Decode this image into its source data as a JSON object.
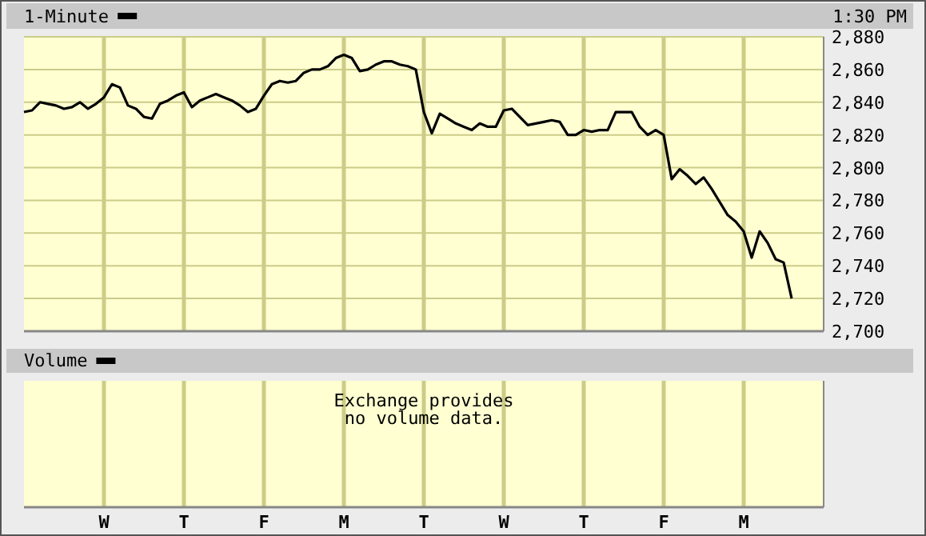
{
  "chart_data": [
    {
      "type": "line",
      "title": "1-Minute",
      "subtitle": "1:30 PM",
      "grid": true,
      "tick_labels": "y",
      "categories": [
        null,
        null,
        null,
        null,
        null,
        null,
        null,
        null,
        null,
        null,
        null,
        null,
        null,
        null,
        null,
        null,
        null,
        null,
        null,
        null,
        null,
        null,
        null,
        null,
        null,
        null,
        null,
        null,
        null,
        null,
        null,
        null,
        null,
        null,
        null,
        null,
        null,
        null,
        null,
        null,
        null,
        null,
        null,
        null,
        null,
        null,
        null,
        null,
        null,
        null,
        null,
        null,
        null,
        null,
        null,
        null,
        null,
        null,
        null,
        null,
        null,
        null,
        null,
        null,
        null,
        null,
        null,
        null,
        null,
        null,
        null,
        null,
        null,
        null,
        null,
        null,
        null,
        null,
        null,
        null,
        null,
        null,
        null,
        null,
        null,
        null,
        null,
        null,
        null,
        null,
        null,
        null,
        null,
        null,
        null,
        null,
        null,
        null,
        null,
        null
      ],
      "ylim": [
        2700,
        2880
      ],
      "yticks": [
        {
          "value": 2700,
          "label": "2,700"
        },
        {
          "value": 2720,
          "label": "2,720"
        },
        {
          "value": 2740,
          "label": "2,740"
        },
        {
          "value": 2760,
          "label": "2,760"
        },
        {
          "value": 2780,
          "label": "2,780"
        },
        {
          "value": 2800,
          "label": "2,800"
        },
        {
          "value": 2820,
          "label": "2,820"
        },
        {
          "value": 2840,
          "label": "2,840"
        },
        {
          "value": 2860,
          "label": "2,860"
        },
        {
          "value": 2880,
          "label": "2,880"
        }
      ],
      "series": [
        {
          "color": "#000000",
          "values": [
            2834,
            2835,
            2840,
            2839,
            2838,
            2836,
            2837,
            2840,
            2836,
            2839,
            2843,
            2851,
            2849,
            2838,
            2836,
            2831,
            2830,
            2839,
            2841,
            2844,
            2846,
            2837,
            2841,
            2843,
            2845,
            2843,
            2841,
            2838,
            2834,
            2836,
            2844,
            2851,
            2853,
            2852,
            2853,
            2858,
            2860,
            2860,
            2862,
            2867,
            2869,
            2867,
            2859,
            2860,
            2863,
            2865,
            2865,
            2863,
            2862,
            2860,
            2834,
            2821,
            2833,
            2830,
            2827,
            2825,
            2823,
            2827,
            2825,
            2825,
            2835,
            2836,
            2831,
            2826,
            2827,
            2828,
            2829,
            2828,
            2820,
            2820,
            2823,
            2822,
            2823,
            2823,
            2834,
            2834,
            2834,
            2825,
            2820,
            2823,
            2820,
            2793,
            2799,
            2795,
            2790,
            2794,
            2787,
            2779,
            2771,
            2767,
            2761,
            2745,
            2761,
            2754,
            2744,
            2742,
            2720,
            null,
            null,
            null
          ]
        }
      ]
    },
    {
      "type": "other",
      "title": "Volume",
      "categories": [
        null,
        null,
        null,
        null,
        null,
        null,
        null,
        null,
        null,
        null,
        "W",
        null,
        null,
        null,
        null,
        null,
        null,
        null,
        null,
        null,
        "T",
        null,
        null,
        null,
        null,
        null,
        null,
        null,
        null,
        null,
        "F",
        null,
        null,
        null,
        null,
        null,
        null,
        null,
        null,
        null,
        "M",
        null,
        null,
        null,
        null,
        null,
        null,
        null,
        null,
        null,
        "T",
        null,
        null,
        null,
        null,
        null,
        null,
        null,
        null,
        null,
        "W",
        null,
        null,
        null,
        null,
        null,
        null,
        null,
        null,
        null,
        "T",
        null,
        null,
        null,
        null,
        null,
        null,
        null,
        null,
        null,
        "F",
        null,
        null,
        null,
        null,
        null,
        null,
        null,
        null,
        null,
        "M",
        null,
        null,
        null,
        null,
        null,
        null,
        null,
        null,
        null
      ],
      "annotations": [
        "Exchange provides\nno volume data."
      ]
    }
  ]
}
